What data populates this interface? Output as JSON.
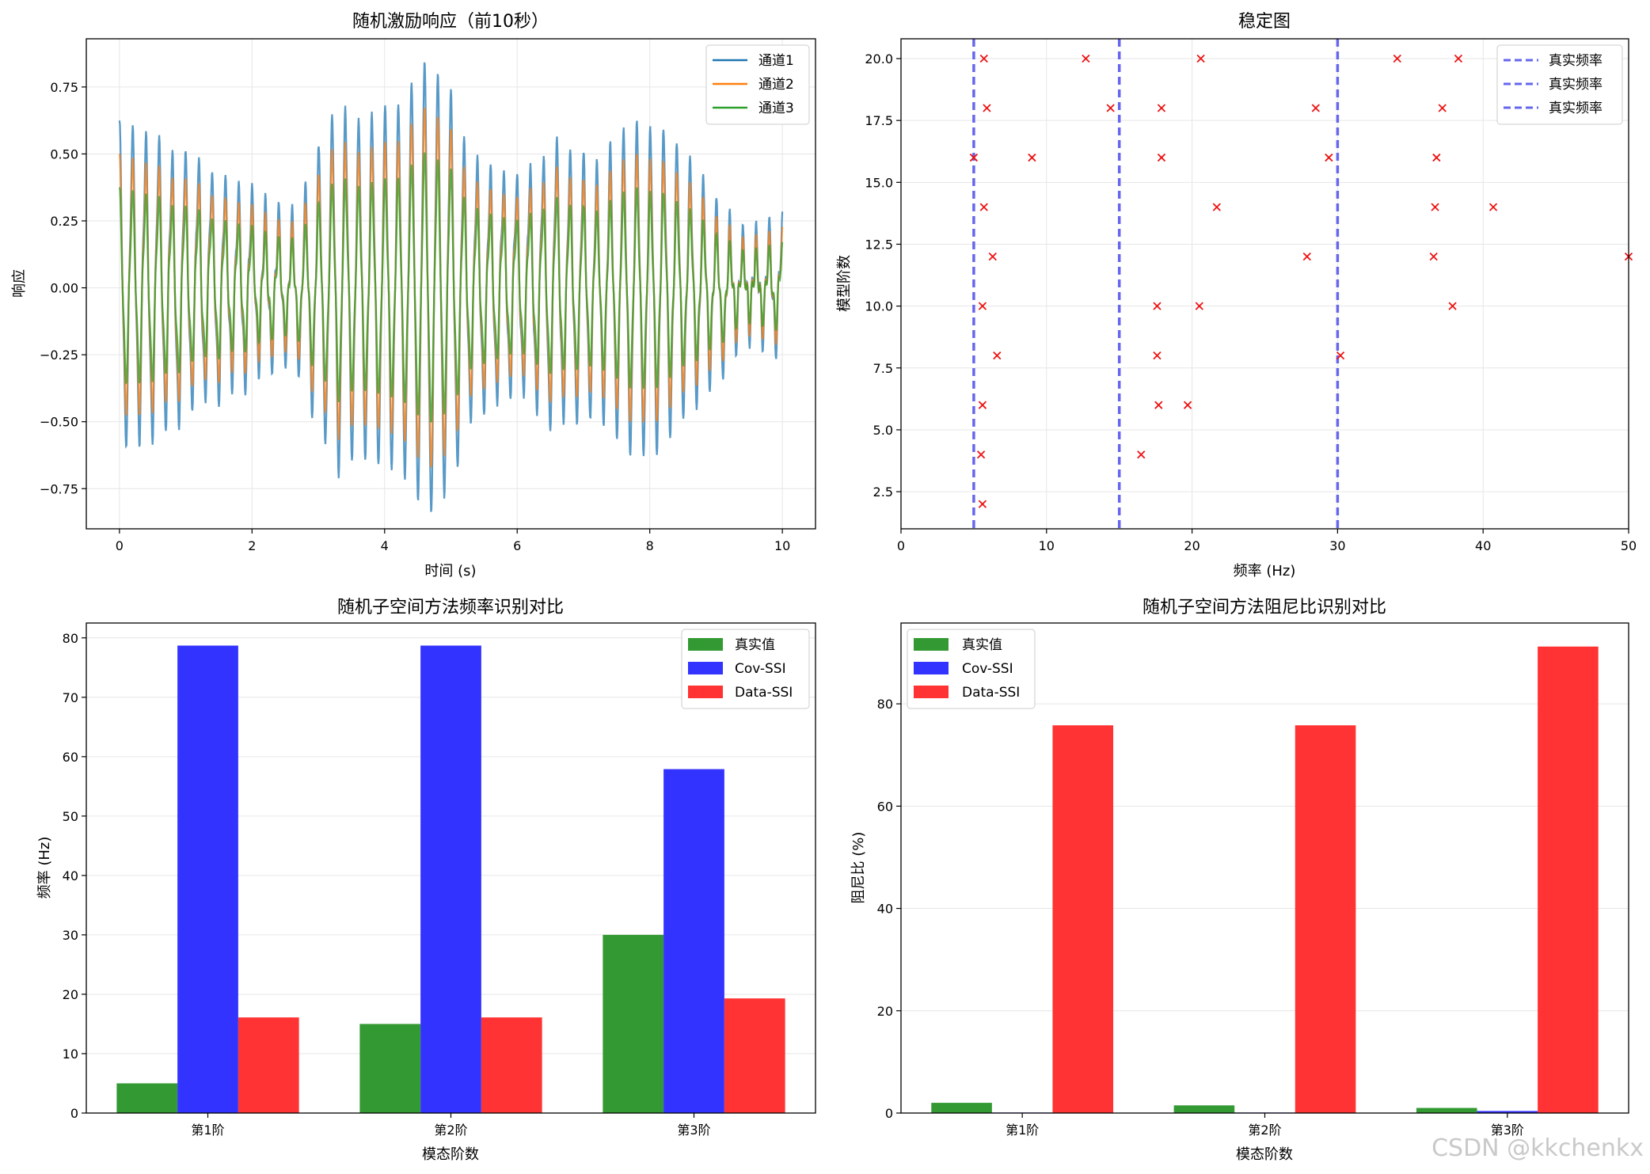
{
  "watermark": "CSDN @kkchenkx",
  "chart_data": [
    {
      "id": "ts",
      "type": "line",
      "title": "随机激励响应（前10秒）",
      "xlabel": "时间 (s)",
      "ylabel": "响应",
      "xlim": [
        -0.5,
        10.5
      ],
      "ylim": [
        -0.9,
        0.93
      ],
      "xticks": [
        0,
        2,
        4,
        6,
        8,
        10
      ],
      "xtick_labels": [
        "0",
        "2",
        "4",
        "6",
        "8",
        "10"
      ],
      "yticks": [
        -0.75,
        -0.5,
        -0.25,
        0.0,
        0.25,
        0.5,
        0.75
      ],
      "ytick_labels": [
        "−0.75",
        "−0.50",
        "−0.25",
        "0.00",
        "0.25",
        "0.50",
        "0.75"
      ],
      "legend_position": "top-right",
      "series": [
        {
          "name": "通道1",
          "color": "#1f77b4",
          "scale": 1.0,
          "amplitude_peak": 0.85,
          "amplitude_trough": -0.82
        },
        {
          "name": "通道2",
          "color": "#ff7f0e",
          "scale": 0.8,
          "amplitude_peak": 0.68,
          "amplitude_trough": -0.66
        },
        {
          "name": "通道3",
          "color": "#2ca02c",
          "scale": 0.6,
          "amplitude_peak": 0.51,
          "amplitude_trough": -0.49
        }
      ],
      "envelope": {
        "t": [
          0,
          0.5,
          1.2,
          2.0,
          2.6,
          3.3,
          3.6,
          4.2,
          4.6,
          4.9,
          5.3,
          6.0,
          6.6,
          7.2,
          7.7,
          8.2,
          8.8,
          9.4,
          10.0
        ],
        "a": [
          0.56,
          0.5,
          0.42,
          0.3,
          0.22,
          0.62,
          0.55,
          0.6,
          0.78,
          0.72,
          0.45,
          0.35,
          0.48,
          0.4,
          0.55,
          0.52,
          0.35,
          0.15,
          0.2
        ]
      },
      "dominant_frequency_hz": 5.0
    },
    {
      "id": "stab",
      "type": "scatter",
      "title": "稳定图",
      "xlabel": "频率 (Hz)",
      "ylabel": "模型阶数",
      "xlim": [
        0,
        50
      ],
      "ylim": [
        1,
        20.8
      ],
      "xticks": [
        0,
        10,
        20,
        30,
        40,
        50
      ],
      "xtick_labels": [
        "0",
        "10",
        "20",
        "30",
        "40",
        "50"
      ],
      "yticks": [
        2.5,
        5.0,
        7.5,
        10.0,
        12.5,
        15.0,
        17.5,
        20.0
      ],
      "ytick_labels": [
        "2.5",
        "5.0",
        "7.5",
        "10.0",
        "12.5",
        "15.0",
        "17.5",
        "20.0"
      ],
      "legend_position": "top-right",
      "true_frequencies": [
        5,
        15,
        30
      ],
      "true_label": "真实频率",
      "line_color": "#6666ee",
      "marker_color": "#ee1111",
      "points": [
        {
          "x": 5.6,
          "y": 2
        },
        {
          "x": 5.5,
          "y": 4
        },
        {
          "x": 16.5,
          "y": 4
        },
        {
          "x": 5.6,
          "y": 6
        },
        {
          "x": 17.7,
          "y": 6
        },
        {
          "x": 19.7,
          "y": 6
        },
        {
          "x": 6.6,
          "y": 8
        },
        {
          "x": 17.6,
          "y": 8
        },
        {
          "x": 30.2,
          "y": 8
        },
        {
          "x": 5.6,
          "y": 10
        },
        {
          "x": 17.6,
          "y": 10
        },
        {
          "x": 20.5,
          "y": 10
        },
        {
          "x": 37.9,
          "y": 10
        },
        {
          "x": 6.3,
          "y": 12
        },
        {
          "x": 27.9,
          "y": 12
        },
        {
          "x": 36.6,
          "y": 12
        },
        {
          "x": 50.0,
          "y": 12
        },
        {
          "x": 5.7,
          "y": 14
        },
        {
          "x": 21.7,
          "y": 14
        },
        {
          "x": 36.7,
          "y": 14
        },
        {
          "x": 40.7,
          "y": 14
        },
        {
          "x": 5.0,
          "y": 16
        },
        {
          "x": 9.0,
          "y": 16
        },
        {
          "x": 17.9,
          "y": 16
        },
        {
          "x": 29.4,
          "y": 16
        },
        {
          "x": 36.8,
          "y": 16
        },
        {
          "x": 5.9,
          "y": 18
        },
        {
          "x": 14.4,
          "y": 18
        },
        {
          "x": 17.9,
          "y": 18
        },
        {
          "x": 28.5,
          "y": 18
        },
        {
          "x": 37.2,
          "y": 18
        },
        {
          "x": 5.7,
          "y": 20
        },
        {
          "x": 12.7,
          "y": 20
        },
        {
          "x": 20.6,
          "y": 20
        },
        {
          "x": 34.1,
          "y": 20
        },
        {
          "x": 38.3,
          "y": 20
        }
      ]
    },
    {
      "id": "freq",
      "type": "bar",
      "title": "随机子空间方法频率识别对比",
      "xlabel": "模态阶数",
      "ylabel": "频率 (Hz)",
      "categories": [
        "第1阶",
        "第2阶",
        "第3阶"
      ],
      "ylim": [
        0,
        82.5
      ],
      "yticks": [
        0,
        10,
        20,
        30,
        40,
        50,
        60,
        70,
        80
      ],
      "ytick_labels": [
        "0",
        "10",
        "20",
        "30",
        "40",
        "50",
        "60",
        "70",
        "80"
      ],
      "legend_position": "top-right",
      "series": [
        {
          "name": "真实值",
          "color": "#339933",
          "values": [
            5.0,
            15.0,
            30.0
          ]
        },
        {
          "name": "Cov-SSI",
          "color": "#3333ff",
          "values": [
            78.7,
            78.7,
            57.9
          ]
        },
        {
          "name": "Data-SSI",
          "color": "#ff3333",
          "values": [
            16.1,
            16.1,
            19.3
          ]
        }
      ]
    },
    {
      "id": "damp",
      "type": "bar",
      "title": "随机子空间方法阻尼比识别对比",
      "xlabel": "模态阶数",
      "ylabel": "阻尼比 (%)",
      "categories": [
        "第1阶",
        "第2阶",
        "第3阶"
      ],
      "ylim": [
        0,
        95.8
      ],
      "yticks": [
        0,
        20,
        40,
        60,
        80
      ],
      "ytick_labels": [
        "0",
        "20",
        "40",
        "60",
        "80"
      ],
      "legend_position": "top-left",
      "series": [
        {
          "name": "真实值",
          "color": "#339933",
          "values": [
            2.0,
            1.5,
            1.0
          ]
        },
        {
          "name": "Cov-SSI",
          "color": "#3333ff",
          "values": [
            0.1,
            0.1,
            0.4
          ]
        },
        {
          "name": "Data-SSI",
          "color": "#ff3333",
          "values": [
            75.8,
            75.8,
            91.2
          ]
        }
      ]
    }
  ]
}
